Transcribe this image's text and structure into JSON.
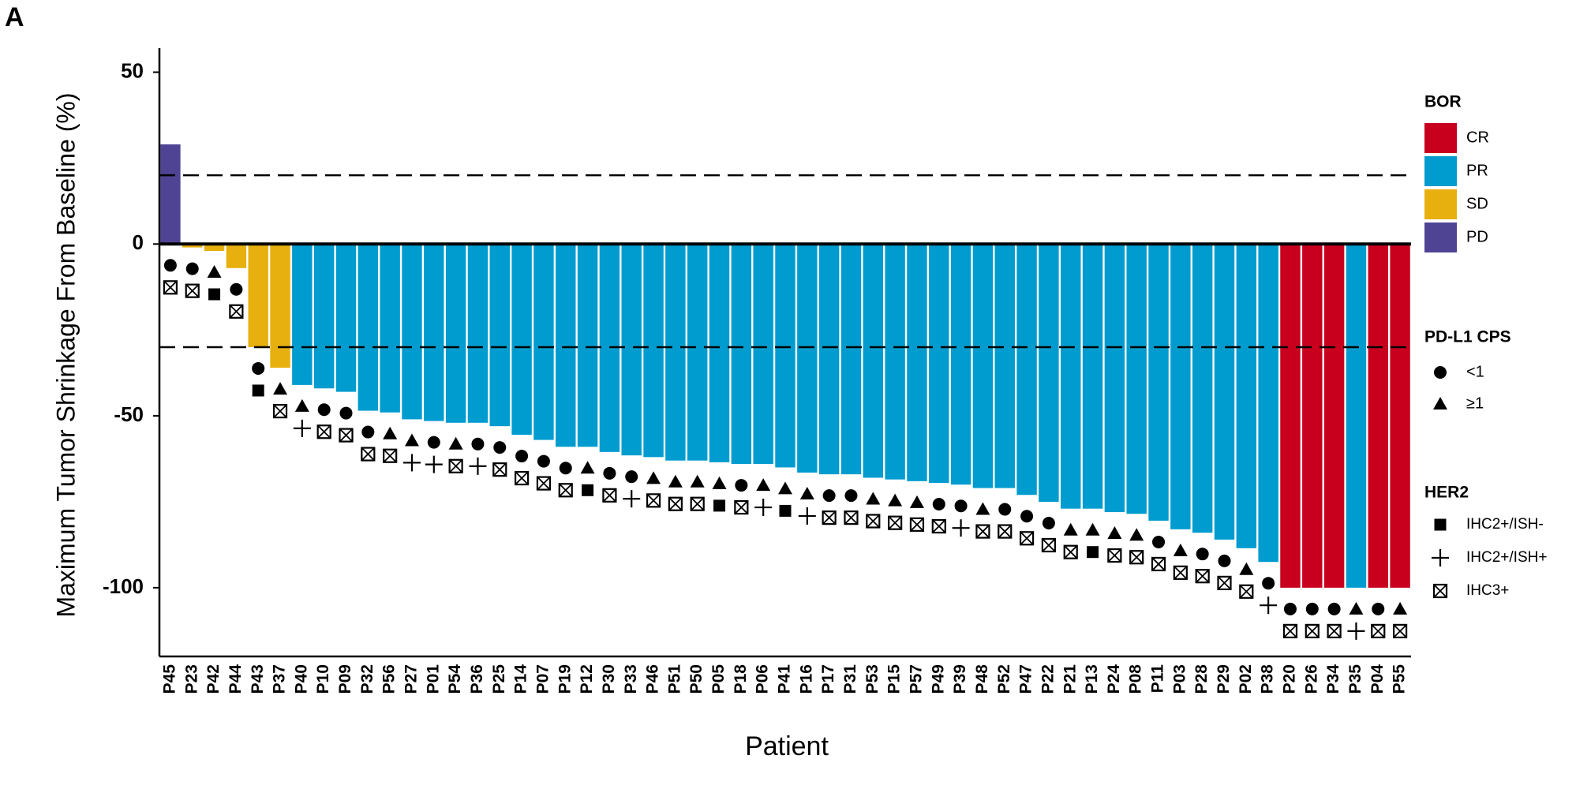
{
  "chart_data": {
    "type": "waterfall",
    "panel_label": "A",
    "x_label": "Patient",
    "y_label": "Maximum Tumor Shrinkage From Baseline (%)",
    "ylim": [
      -120,
      57
    ],
    "yticks": [
      50,
      0,
      -50,
      -100
    ],
    "ref_lines": [
      20,
      -30
    ],
    "categories": [
      "P45",
      "P23",
      "P42",
      "P44",
      "P43",
      "P37",
      "P40",
      "P10",
      "P09",
      "P32",
      "P56",
      "P27",
      "P01",
      "P54",
      "P36",
      "P25",
      "P14",
      "P07",
      "P19",
      "P12",
      "P30",
      "P33",
      "P46",
      "P51",
      "P50",
      "P05",
      "P18",
      "P06",
      "P41",
      "P16",
      "P17",
      "P31",
      "P53",
      "P15",
      "P57",
      "P49",
      "P39",
      "P48",
      "P52",
      "P47",
      "P22",
      "P21",
      "P13",
      "P24",
      "P08",
      "P11",
      "P03",
      "P28",
      "P29",
      "P02",
      "P38",
      "P20",
      "P26",
      "P34",
      "P35",
      "P04",
      "P55"
    ],
    "values": [
      29,
      -1,
      -2,
      -7,
      -30,
      -36,
      -41,
      -42,
      -43,
      -48.5,
      -49,
      -51,
      -51.5,
      -52,
      -52,
      -53,
      -55.5,
      -57,
      -59,
      -59,
      -60.5,
      -61.5,
      -62,
      -63,
      -63,
      -63.5,
      -64,
      -64,
      -65,
      -66.5,
      -67,
      -67,
      -68,
      -68.5,
      -69,
      -69.5,
      -70,
      -71,
      -71,
      -73,
      -75,
      -77,
      -77,
      -78,
      -78.5,
      -80.5,
      -83,
      -84,
      -86,
      -88.5,
      -92.5,
      -100,
      -100,
      -100,
      -100,
      -100,
      -100
    ],
    "bor": [
      "PD",
      "SD",
      "SD",
      "SD",
      "SD",
      "SD",
      "PR",
      "PR",
      "PR",
      "PR",
      "PR",
      "PR",
      "PR",
      "PR",
      "PR",
      "PR",
      "PR",
      "PR",
      "PR",
      "PR",
      "PR",
      "PR",
      "PR",
      "PR",
      "PR",
      "PR",
      "PR",
      "PR",
      "PR",
      "PR",
      "PR",
      "PR",
      "PR",
      "PR",
      "PR",
      "PR",
      "PR",
      "PR",
      "PR",
      "PR",
      "PR",
      "PR",
      "PR",
      "PR",
      "PR",
      "PR",
      "PR",
      "PR",
      "PR",
      "PR",
      "PR",
      "CR",
      "CR",
      "CR",
      "PR",
      "CR",
      "CR"
    ],
    "pdl1": [
      "<1",
      "<1",
      "≥1",
      "<1",
      "<1",
      "≥1",
      "≥1",
      "<1",
      "<1",
      "<1",
      "≥1",
      "≥1",
      "<1",
      "≥1",
      "<1",
      "<1",
      "<1",
      "<1",
      "<1",
      "≥1",
      "<1",
      "<1",
      "≥1",
      "≥1",
      "≥1",
      "≥1",
      "<1",
      "≥1",
      "≥1",
      "≥1",
      "<1",
      "<1",
      "≥1",
      "≥1",
      "≥1",
      "<1",
      "<1",
      "≥1",
      "<1",
      "<1",
      "<1",
      "≥1",
      "≥1",
      "≥1",
      "≥1",
      "<1",
      "≥1",
      "<1",
      "<1",
      "≥1",
      "<1",
      "<1",
      "<1",
      "<1",
      "≥1",
      "<1",
      "≥1"
    ],
    "her2": [
      "IHC3+",
      "IHC3+",
      "IHC2+/ISH-",
      "IHC3+",
      "IHC2+/ISH-",
      "IHC3+",
      "IHC2+/ISH+",
      "IHC3+",
      "IHC3+",
      "IHC3+",
      "IHC3+",
      "IHC2+/ISH+",
      "IHC2+/ISH+",
      "IHC3+",
      "IHC2+/ISH+",
      "IHC3+",
      "IHC3+",
      "IHC3+",
      "IHC3+",
      "IHC2+/ISH-",
      "IHC3+",
      "IHC2+/ISH+",
      "IHC3+",
      "IHC3+",
      "IHC3+",
      "IHC2+/ISH-",
      "IHC3+",
      "IHC2+/ISH+",
      "IHC2+/ISH-",
      "IHC2+/ISH+",
      "IHC3+",
      "IHC3+",
      "IHC3+",
      "IHC3+",
      "IHC3+",
      "IHC3+",
      "IHC2+/ISH+",
      "IHC3+",
      "IHC3+",
      "IHC3+",
      "IHC3+",
      "IHC3+",
      "IHC2+/ISH-",
      "IHC3+",
      "IHC3+",
      "IHC3+",
      "IHC3+",
      "IHC3+",
      "IHC3+",
      "IHC3+",
      "IHC2+/ISH+",
      "IHC3+",
      "IHC3+",
      "IHC3+",
      "IHC2+/ISH+",
      "IHC3+",
      "IHC3+"
    ],
    "legends": [
      {
        "title": "BOR",
        "items": [
          {
            "label": "CR",
            "color": "#c8001e"
          },
          {
            "label": "PR",
            "color": "#009ccf"
          },
          {
            "label": "SD",
            "color": "#e8b00e"
          },
          {
            "label": "PD",
            "color": "#4f4494"
          }
        ]
      },
      {
        "title": "PD-L1 CPS",
        "items": [
          {
            "label": "<1",
            "shape": "circle"
          },
          {
            "label": "≥1",
            "shape": "triangle"
          }
        ]
      },
      {
        "title": "HER2",
        "items": [
          {
            "label": "IHC2+/ISH-",
            "shape": "square"
          },
          {
            "label": "IHC2+/ISH+",
            "shape": "plus"
          },
          {
            "label": "IHC3+",
            "shape": "boxx"
          }
        ]
      }
    ]
  }
}
